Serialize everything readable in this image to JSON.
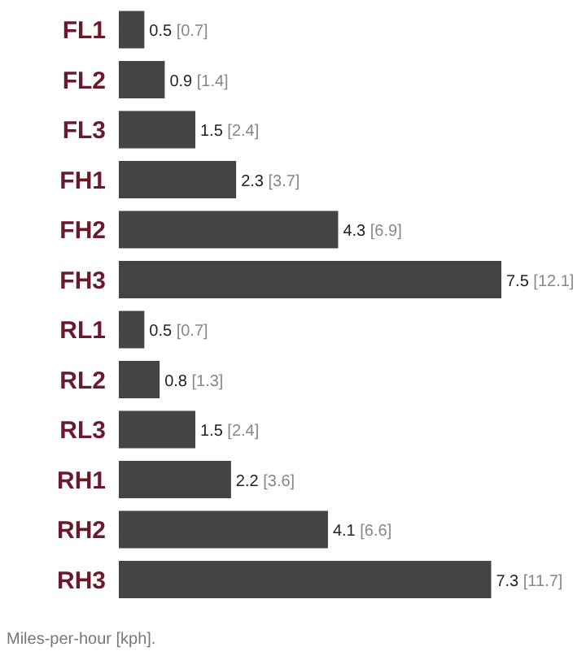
{
  "chart_data": {
    "type": "bar",
    "orientation": "horizontal",
    "tick_labels": "y",
    "categories": [
      "FL1",
      "FL2",
      "FL3",
      "FH1",
      "FH2",
      "FH3",
      "RL1",
      "RL2",
      "RL3",
      "RH1",
      "RH2",
      "RH3"
    ],
    "values": [
      0.5,
      0.9,
      1.5,
      2.3,
      4.3,
      7.5,
      0.5,
      0.8,
      1.5,
      2.2,
      4.1,
      7.3
    ],
    "value_labels": [
      "0.5 [0.7]",
      "0.9 [1.4]",
      "1.5 [2.4]",
      "2.3 [3.7]",
      "4.3 [6.9]",
      "7.5 [12.1]",
      "0.5 [0.7]",
      "0.8 [1.3]",
      "1.5 [2.4]",
      "2.2 [3.6]",
      "4.1 [6.6]",
      "7.3 [11.7]"
    ],
    "color": "#444444",
    "annotations": [
      "Miles-per-hour [kph]."
    ]
  }
}
